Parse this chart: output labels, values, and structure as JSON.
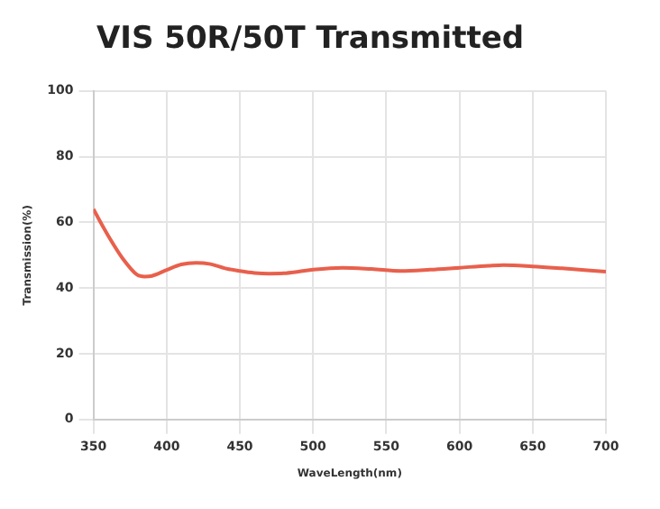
{
  "chart_data": {
    "type": "line",
    "title": "VIS 50R/50T Transmitted",
    "xlabel": "WaveLength(nm)",
    "ylabel": "Transmission(%)",
    "x": [
      350,
      360,
      370,
      380,
      385,
      390,
      400,
      410,
      420,
      430,
      440,
      450,
      460,
      470,
      480,
      490,
      500,
      520,
      540,
      560,
      580,
      600,
      620,
      630,
      650,
      670,
      700
    ],
    "series": [
      {
        "color": "#e8604c",
        "values": [
          64,
          56,
          49,
          44,
          43.5,
          43.7,
          45.5,
          47.2,
          47.7,
          47.3,
          46,
          45.2,
          44.6,
          44.4,
          44.5,
          45,
          45.6,
          46.2,
          45.8,
          45.2,
          45.6,
          46.2,
          46.8,
          47,
          46.6,
          46,
          45
        ]
      }
    ],
    "xlim": [
      350,
      700
    ],
    "xticks": [
      350,
      400,
      450,
      500,
      550,
      600,
      650,
      700
    ],
    "ylim": [
      0,
      100
    ],
    "yticks": [
      0,
      20,
      40,
      60,
      80,
      100
    ],
    "grid": true,
    "legend": false,
    "marker": "none",
    "line_style": "solid"
  }
}
